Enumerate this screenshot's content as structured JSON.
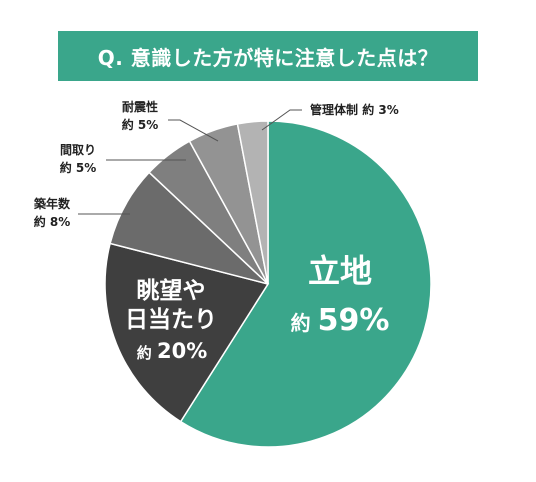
{
  "header": {
    "title": "Q. 意識した方が特に注意した点は？"
  },
  "chart_data": {
    "type": "pie",
    "title": "Q. 意識した方が特に注意した点は？",
    "approx_prefix": "約",
    "slices": [
      {
        "name": "立地",
        "value": 59,
        "display": "59%",
        "color": "#3aa68b"
      },
      {
        "name": "眺望や日当たり",
        "name_lines": [
          "眺望や",
          "日当たり"
        ],
        "value": 20,
        "display": "20%",
        "color": "#3f3f3f"
      },
      {
        "name": "築年数",
        "value": 8,
        "display": "8%",
        "color": "#6b6b6b"
      },
      {
        "name": "間取り",
        "value": 5,
        "display": "5%",
        "color": "#7f7f7f"
      },
      {
        "name": "耐震性",
        "value": 5,
        "display": "5%",
        "color": "#939393"
      },
      {
        "name": "管理体制",
        "value": 3,
        "display": "3%",
        "color": "#b3b3b3"
      }
    ]
  }
}
